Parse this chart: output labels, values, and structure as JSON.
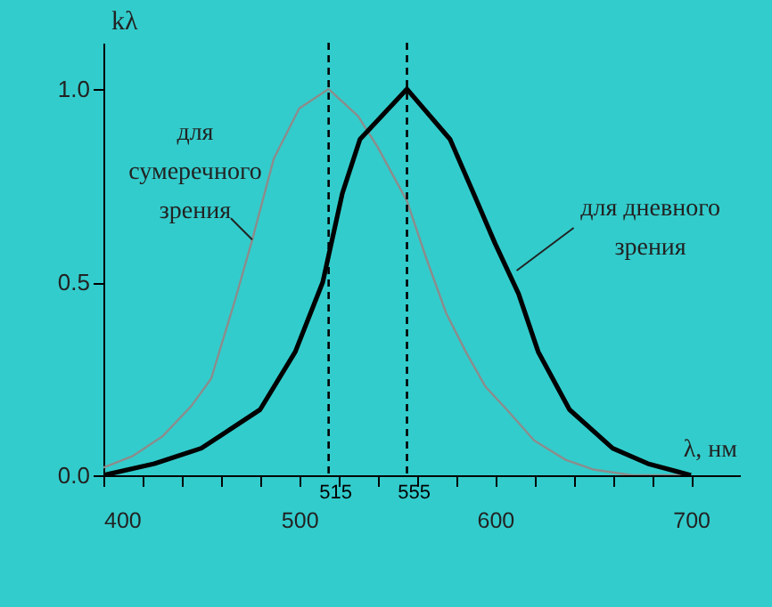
{
  "chart_data": {
    "type": "line",
    "xlabel": "λ, нм",
    "ylabel": "kλ",
    "xlim": [
      400,
      725
    ],
    "ylim": [
      0,
      1.12
    ],
    "xticks": [
      400,
      {
        "value": 420,
        "label": null
      },
      {
        "value": 440,
        "label": null
      },
      {
        "value": 460,
        "label": null
      },
      {
        "value": 480,
        "label": null
      },
      500,
      {
        "value": 520,
        "label": null
      },
      {
        "value": 540,
        "label": null
      },
      {
        "value": 560,
        "label": null
      },
      {
        "value": 580,
        "label": null
      },
      600,
      {
        "value": 620,
        "label": null
      },
      {
        "value": 640,
        "label": null
      },
      {
        "value": 660,
        "label": null
      },
      {
        "value": 680,
        "label": null
      },
      700
    ],
    "yticks": [
      {
        "value": 0,
        "label": "0.0"
      },
      {
        "value": 0.5,
        "label": "0.5"
      },
      {
        "value": 1,
        "label": "1.0"
      }
    ],
    "grid": false,
    "ref_lines": [
      {
        "axis": "x",
        "value": 515,
        "label": "515",
        "color": "#000000",
        "line_style": "dashed"
      },
      {
        "axis": "x",
        "value": 555,
        "label": "555",
        "color": "#000000",
        "line_style": "dashed"
      }
    ],
    "series": [
      {
        "color": "#8c8c8c",
        "x": [
          400,
          415,
          430,
          445,
          455,
          467,
          476,
          487,
          500,
          515,
          530,
          540,
          555,
          565,
          575,
          585,
          595,
          606,
          620,
          636,
          650,
          670,
          700
        ],
        "values": [
          0.02,
          0.05,
          0.1,
          0.18,
          0.25,
          0.45,
          0.61,
          0.82,
          0.95,
          1.0,
          0.93,
          0.85,
          0.71,
          0.56,
          0.42,
          0.32,
          0.23,
          0.17,
          0.09,
          0.04,
          0.015,
          0.0,
          0.0
        ]
      },
      {
        "color": "#000000",
        "x": [
          400,
          426,
          450,
          480,
          498,
          512,
          522,
          531,
          555,
          577,
          589,
          600,
          612,
          622,
          638,
          660,
          678,
          700
        ],
        "values": [
          0.0,
          0.03,
          0.07,
          0.17,
          0.32,
          0.5,
          0.73,
          0.87,
          1.0,
          0.87,
          0.73,
          0.6,
          0.47,
          0.32,
          0.17,
          0.07,
          0.03,
          0.0
        ]
      }
    ],
    "annotations": [
      {
        "text": "для\nсумеречного\nзрения",
        "x": 476,
        "y": 0.61
      },
      {
        "text": "для дневного\nзрения",
        "x": 611,
        "y": 0.53
      }
    ]
  }
}
